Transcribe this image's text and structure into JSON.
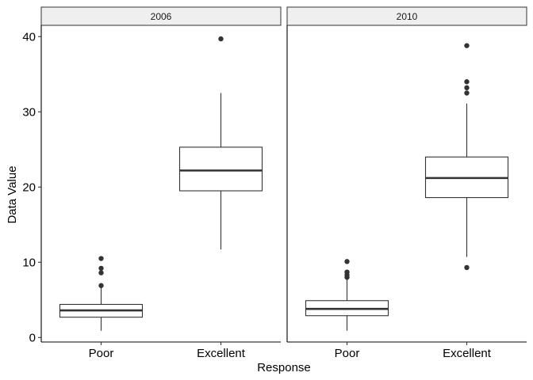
{
  "chart_data": {
    "type": "boxplot",
    "xlabel": "Response",
    "ylabel": "Data Value",
    "ylim": [
      -0.6,
      41.5
    ],
    "yticks": [
      0,
      10,
      20,
      30,
      40
    ],
    "categories": [
      "Poor",
      "Excellent"
    ],
    "legend": "none",
    "grid": false,
    "panels": [
      {
        "facet": "2006",
        "boxes": [
          {
            "category": "Poor",
            "lower_whisker": 0.9,
            "q1": 2.7,
            "median": 3.6,
            "q3": 4.4,
            "upper_whisker": 6.8,
            "outliers": [
              6.9,
              8.6,
              9.2,
              10.5
            ]
          },
          {
            "category": "Excellent",
            "lower_whisker": 11.7,
            "q1": 19.5,
            "median": 22.2,
            "q3": 25.3,
            "upper_whisker": 32.5,
            "outliers": [
              39.7
            ]
          }
        ]
      },
      {
        "facet": "2010",
        "boxes": [
          {
            "category": "Poor",
            "lower_whisker": 0.9,
            "q1": 2.9,
            "median": 3.8,
            "q3": 4.9,
            "upper_whisker": 7.9,
            "outliers": [
              8.0,
              8.3,
              8.7,
              10.1
            ]
          },
          {
            "category": "Excellent",
            "lower_whisker": 10.7,
            "q1": 18.6,
            "median": 21.2,
            "q3": 24.0,
            "upper_whisker": 31.1,
            "outliers": [
              9.3,
              32.5,
              33.2,
              34.0,
              38.8
            ]
          }
        ]
      }
    ]
  }
}
